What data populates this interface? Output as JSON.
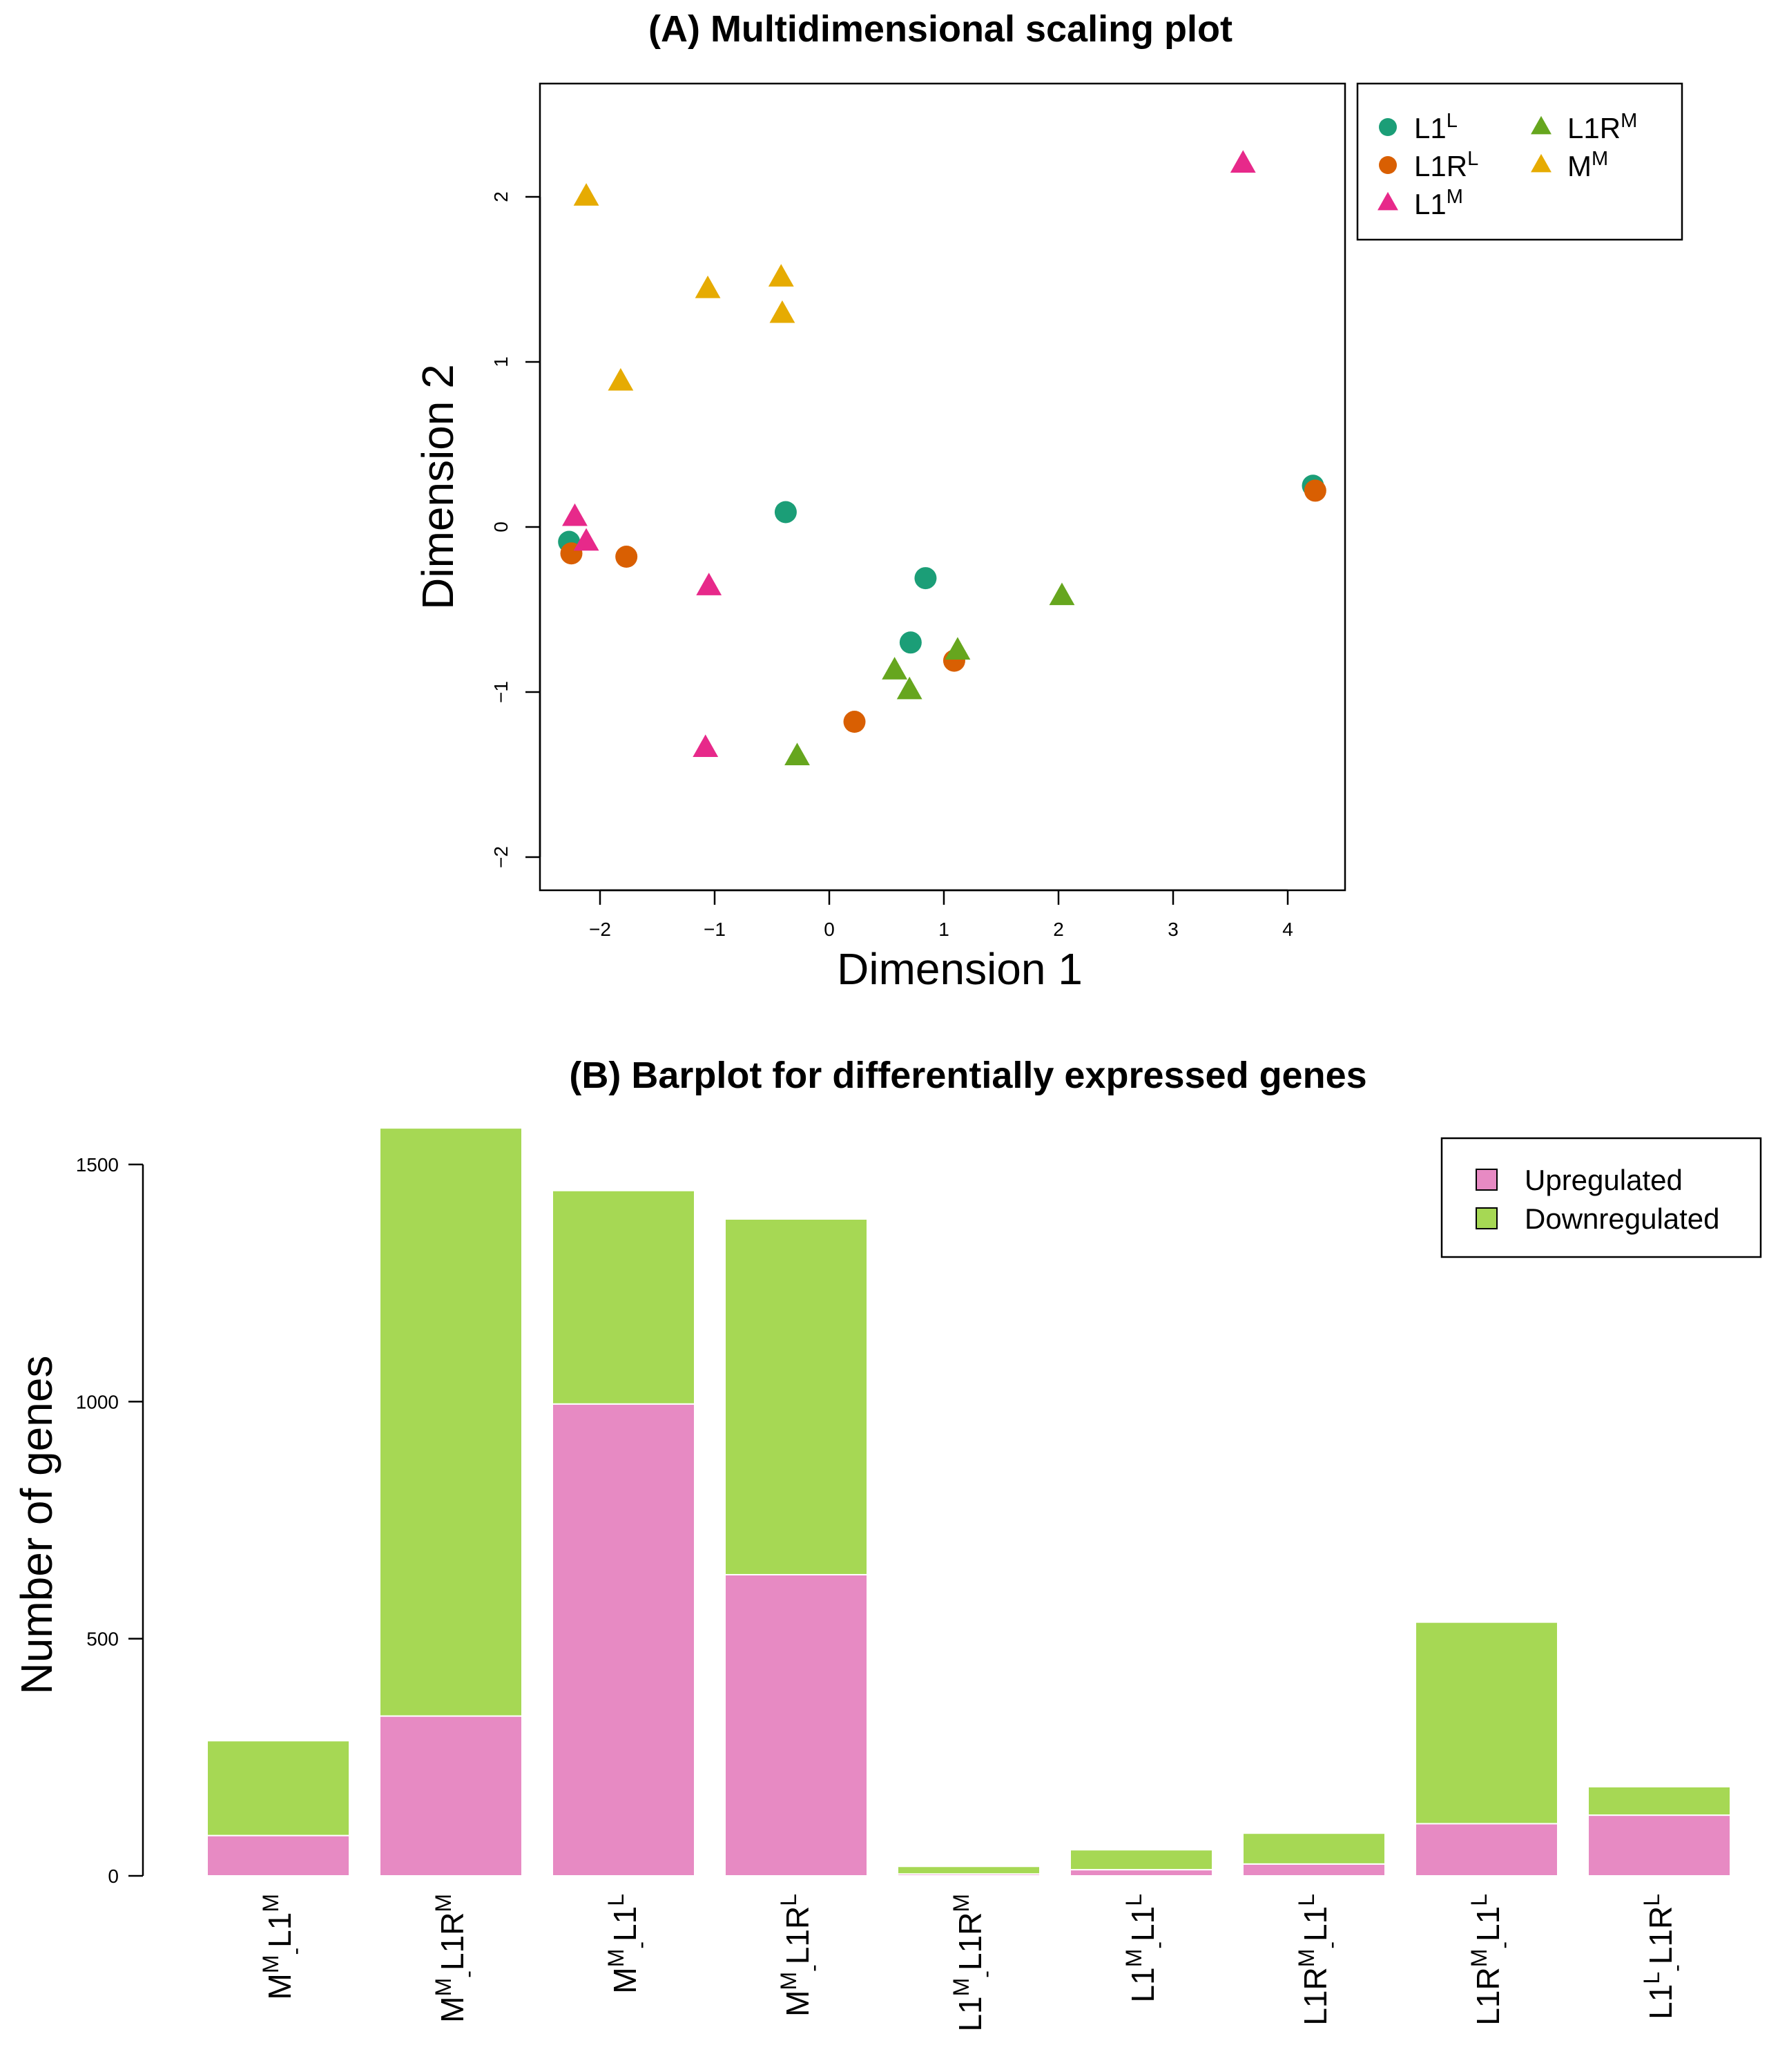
{
  "chart_data": [
    {
      "type": "scatter",
      "title": "(A) Multidimensional scaling plot",
      "xlabel": "Dimension 1",
      "ylabel": "Dimension 2",
      "xlim": [
        -2.5,
        4.5
      ],
      "ylim": [
        -2.2,
        2.7
      ],
      "xticks": [
        -2,
        -1,
        0,
        1,
        2,
        3,
        4
      ],
      "yticks": [
        -2,
        -1,
        0,
        1,
        2
      ],
      "xtick_labels": [
        "−2",
        "−1",
        "0",
        "1",
        "2",
        "3",
        "4"
      ],
      "ytick_labels": [
        "−2",
        "−1",
        "0",
        "1",
        "2"
      ],
      "legend_position": "top-right-outside",
      "series": [
        {
          "name": "L1",
          "sup": "L",
          "color": "#1b9e77",
          "marker": "circle",
          "points": [
            [
              -2.27,
              -0.09
            ],
            [
              -0.38,
              0.09
            ],
            [
              0.84,
              -0.31
            ],
            [
              0.71,
              -0.7
            ],
            [
              4.22,
              0.25
            ]
          ]
        },
        {
          "name": "L1R",
          "sup": "L",
          "color": "#d95f02",
          "marker": "circle",
          "points": [
            [
              -2.25,
              -0.16
            ],
            [
              -1.77,
              -0.18
            ],
            [
              0.22,
              -1.18
            ],
            [
              1.09,
              -0.81
            ],
            [
              4.24,
              0.22
            ]
          ]
        },
        {
          "name": "L1",
          "sup": "M",
          "color": "#e7298a",
          "marker": "triangle",
          "points": [
            [
              -2.22,
              0.06
            ],
            [
              -2.12,
              -0.09
            ],
            [
              -1.05,
              -0.36
            ],
            [
              -1.08,
              -1.34
            ],
            [
              3.61,
              2.2
            ]
          ]
        },
        {
          "name": "L1R",
          "sup": "M",
          "color": "#66a61e",
          "marker": "triangle",
          "points": [
            [
              0.57,
              -0.87
            ],
            [
              0.7,
              -0.99
            ],
            [
              1.12,
              -0.75
            ],
            [
              2.03,
              -0.42
            ],
            [
              -0.28,
              -1.39
            ]
          ]
        },
        {
          "name": "M",
          "sup": "M",
          "color": "#e6ab02",
          "marker": "triangle",
          "points": [
            [
              -2.12,
              2.0
            ],
            [
              -1.06,
              1.44
            ],
            [
              -0.42,
              1.51
            ],
            [
              -0.41,
              1.29
            ],
            [
              -1.82,
              0.88
            ]
          ]
        }
      ]
    },
    {
      "type": "bar",
      "stacked": true,
      "title": "(B) Barplot for differentially expressed genes",
      "xlabel": "",
      "ylabel": "Number of genes",
      "ylim": [
        0,
        1580
      ],
      "yticks": [
        0,
        500,
        1000,
        1500
      ],
      "ytick_labels": [
        "0",
        "500",
        "1000",
        "1500"
      ],
      "legend_position": "top-right",
      "categories": [
        {
          "a": "M",
          "as": "M",
          "b": "L1",
          "bs": "M"
        },
        {
          "a": "M",
          "as": "M",
          "b": "L1R",
          "bs": "M"
        },
        {
          "a": "M",
          "as": "M",
          "b": "L1",
          "bs": "L"
        },
        {
          "a": "M",
          "as": "M",
          "b": "L1R",
          "bs": "L"
        },
        {
          "a": "L1",
          "as": "M",
          "b": "L1R",
          "bs": "M"
        },
        {
          "a": "L1",
          "as": "M",
          "b": "L1",
          "bs": "L"
        },
        {
          "a": "L1R",
          "as": "M",
          "b": "L1",
          "bs": "L"
        },
        {
          "a": "L1R",
          "as": "M",
          "b": "L1",
          "bs": "L"
        },
        {
          "a": "L1",
          "as": "L",
          "b": "L1R",
          "bs": "L"
        }
      ],
      "separator": "-",
      "series": [
        {
          "name": "Upregulated",
          "color": "#e78ac3",
          "values": [
            85,
            337,
            995,
            635,
            4,
            13,
            25,
            110,
            128
          ]
        },
        {
          "name": "Downregulated",
          "color": "#a6d854",
          "values": [
            200,
            1240,
            450,
            750,
            16,
            42,
            65,
            425,
            60
          ]
        }
      ]
    }
  ]
}
